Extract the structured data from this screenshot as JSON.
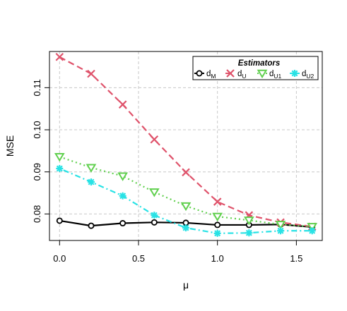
{
  "chart_data": {
    "type": "line",
    "title": "",
    "xlabel": "μ",
    "ylabel": "MSE",
    "x": [
      0.0,
      0.2,
      0.4,
      0.6,
      0.8,
      1.0,
      1.2,
      1.4,
      1.6
    ],
    "xlim": [
      -0.064,
      1.664
    ],
    "ylim": [
      0.0737,
      0.1186
    ],
    "x_ticks": [
      0.0,
      0.5,
      1.0,
      1.5
    ],
    "x_tick_labels": [
      "0.0",
      "0.5",
      "1.0",
      "1.5"
    ],
    "y_ticks": [
      0.08,
      0.09,
      0.1,
      0.11
    ],
    "y_tick_labels": [
      "0.08",
      "0.09",
      "0.10",
      "0.11"
    ],
    "grid": true,
    "legend": {
      "title": "Estimators",
      "placement": "top-right",
      "orientation": "horizontal"
    },
    "series": [
      {
        "name": "M",
        "label_base": "d",
        "label_sub": "M",
        "color": "#000000",
        "marker": "circle",
        "dash": "solid",
        "values": [
          0.0784,
          0.0772,
          0.0778,
          0.078,
          0.0779,
          0.0774,
          0.0774,
          0.0775,
          0.0769
        ]
      },
      {
        "name": "U",
        "label_base": "d",
        "label_sub": "U",
        "color": "#DF536B",
        "marker": "cross",
        "dash": "dashed",
        "values": [
          0.1173,
          0.1133,
          0.106,
          0.0977,
          0.0899,
          0.0829,
          0.0797,
          0.078,
          0.077
        ]
      },
      {
        "name": "U1",
        "label_base": "d",
        "label_sub": "U1",
        "color": "#61D04F",
        "marker": "triangle-down",
        "dash": "dotted",
        "values": [
          0.0936,
          0.091,
          0.089,
          0.0852,
          0.0819,
          0.0794,
          0.0785,
          0.0775,
          0.077
        ]
      },
      {
        "name": "U2",
        "label_base": "d",
        "label_sub": "U2",
        "color": "#28E2E5",
        "marker": "asterisk",
        "dash": "dotdash",
        "values": [
          0.0908,
          0.0876,
          0.0843,
          0.0797,
          0.0767,
          0.0754,
          0.0755,
          0.076,
          0.076
        ]
      }
    ]
  }
}
